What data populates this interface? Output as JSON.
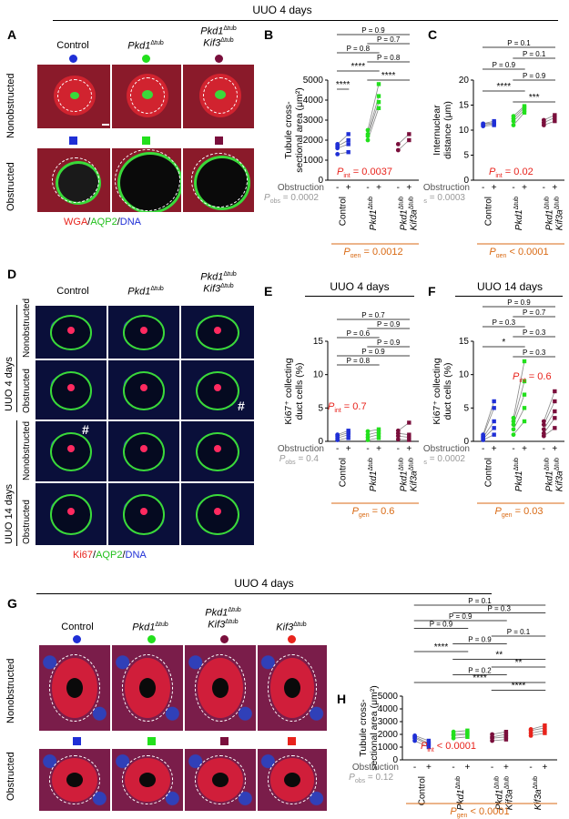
{
  "headers": {
    "top": "UUO 4 days",
    "middle_e": "UUO 4 days",
    "middle_f": "UUO 14 days",
    "bottom": "UUO 4 days"
  },
  "panel_letters": {
    "a": "A",
    "b": "B",
    "c": "C",
    "d": "D",
    "e": "E",
    "f": "F",
    "g": "G",
    "h": "H"
  },
  "groups": {
    "control": "Control",
    "pkd1": "Pkd1",
    "pkd1_sup": "Δtub",
    "kif3": "Kif3",
    "kif3_sup": "Δtub",
    "kif3a": "Kif3a"
  },
  "row_labels": {
    "nonobstructed": "Nonobstructed",
    "obstructed": "Obstructed",
    "uuo4": "UUO 4 days",
    "uuo14": "UUO 14 days"
  },
  "stain_a": {
    "wga": "WGA",
    "aqp2": "AQP2",
    "dna": "DNA",
    "sep": "/"
  },
  "stain_d": {
    "ki67": "Ki67",
    "aqp2": "AQP2",
    "dna": "DNA",
    "sep": "/"
  },
  "hash_mark": "#",
  "colors": {
    "control": "#1f2fd6",
    "pkd1": "#22e01c",
    "kif3": "#7a0f3c",
    "kif3a": "#e8231c",
    "pint": "#e8231c",
    "pgen": "#d96a14",
    "pobs": "#999999"
  },
  "obstruction_label": "Obstruction",
  "minus": "-",
  "plus": "+",
  "chart_data": [
    {
      "panel": "B",
      "type": "scatter",
      "ylabel": "Tubule cross-\nsectional area (μm²)",
      "ylim": [
        0,
        5000
      ],
      "yticks": [
        0,
        1000,
        2000,
        3000,
        4000,
        5000
      ],
      "groups": [
        "Control",
        "Pkd1Δtub",
        "Pkd1Δtub Kif3aΔtub"
      ],
      "series": [
        {
          "group": "Control",
          "nonobstructed": [
            1300,
            1600,
            1700,
            1800
          ],
          "obstructed": [
            1400,
            1800,
            2000,
            2300
          ]
        },
        {
          "group": "Pkd1Δtub",
          "nonobstructed": [
            2000,
            2200,
            2300,
            2500
          ],
          "obstructed": [
            3600,
            3900,
            4200,
            4800
          ]
        },
        {
          "group": "Pkd1Δtub Kif3aΔtub",
          "nonobstructed": [
            1500,
            1800
          ],
          "obstructed": [
            2000,
            2300
          ]
        }
      ],
      "comparisons": [
        "P = 0.9",
        "P = 0.7",
        "P = 0.8",
        "P = 0.8",
        "****",
        "****",
        "****"
      ],
      "p_int": "P",
      "p_int_sub": "int",
      "p_int_val": " = 0.0037",
      "p_obs": "P",
      "p_obs_sub": "obs",
      "p_obs_val": " = 0.0002",
      "p_gen": "P",
      "p_gen_sub": "gen",
      "p_gen_val": " = 0.0012"
    },
    {
      "panel": "C",
      "type": "scatter",
      "ylabel": "Internuclear\ndistance (μm)",
      "ylim": [
        0,
        20
      ],
      "yticks": [
        0,
        5,
        10,
        15,
        20
      ],
      "groups": [
        "Control",
        "Pkd1Δtub",
        "Pkd1Δtub Kif3aΔtub"
      ],
      "series": [
        {
          "group": "Control",
          "nonobstructed": [
            10.8,
            11.0,
            11.2,
            11.3
          ],
          "obstructed": [
            11.0,
            11.3,
            11.5,
            11.8
          ]
        },
        {
          "group": "Pkd1Δtub",
          "nonobstructed": [
            11.0,
            11.8,
            12.3,
            12.8
          ],
          "obstructed": [
            13.5,
            14.0,
            14.5,
            14.8
          ]
        },
        {
          "group": "Pkd1Δtub Kif3aΔtub",
          "nonobstructed": [
            11.0,
            11.5,
            12.0
          ],
          "obstructed": [
            11.8,
            12.5,
            13.0
          ]
        }
      ],
      "comparisons": [
        "P = 0.1",
        "P = 0.1",
        "P = 0.9",
        "P = 0.9",
        "****",
        "***"
      ],
      "p_int": "P",
      "p_int_sub": "int",
      "p_int_val": " = 0.02",
      "p_obs": "P",
      "p_obs_sub": "obs",
      "p_obs_val": " = 0.0003",
      "p_gen": "P",
      "p_gen_sub": "gen",
      "p_gen_val": " < 0.0001"
    },
    {
      "panel": "E",
      "type": "scatter",
      "ylabel": "Ki67⁺ collecting\nduct cells (%)",
      "ylim": [
        0,
        15
      ],
      "yticks": [
        0,
        5,
        10,
        15
      ],
      "groups": [
        "Control",
        "Pkd1Δtub",
        "Pkd1Δtub Kif3aΔtub"
      ],
      "series": [
        {
          "group": "Control",
          "nonobstructed": [
            0.2,
            0.5,
            0.8,
            1.0
          ],
          "obstructed": [
            0.5,
            1.0,
            1.3,
            1.6
          ]
        },
        {
          "group": "Pkd1Δtub",
          "nonobstructed": [
            0.2,
            0.6,
            1.0,
            1.5
          ],
          "obstructed": [
            0.5,
            1.0,
            1.4,
            1.8
          ]
        },
        {
          "group": "Pkd1Δtub Kif3aΔtub",
          "nonobstructed": [
            0.3,
            0.8,
            1.2,
            1.6
          ],
          "obstructed": [
            0.2,
            0.6,
            1.0,
            2.8
          ]
        }
      ],
      "comparisons": [
        "P = 0.7",
        "P = 0.9",
        "P = 0.6",
        "P = 0.9",
        "P = 0.9",
        "P = 0.8"
      ],
      "p_int": "P",
      "p_int_sub": "int",
      "p_int_val": " = 0.7",
      "p_obs": "P",
      "p_obs_sub": "obs",
      "p_obs_val": " = 0.4",
      "p_gen": "P",
      "p_gen_sub": "gen",
      "p_gen_val": " = 0.6"
    },
    {
      "panel": "F",
      "type": "scatter",
      "ylabel": "Ki67⁺ collecting\nduct cells (%)",
      "ylim": [
        0,
        15
      ],
      "yticks": [
        0,
        5,
        10,
        15
      ],
      "groups": [
        "Control",
        "Pkd1Δtub",
        "Pkd1Δtub Kif3aΔtub"
      ],
      "series": [
        {
          "group": "Control",
          "nonobstructed": [
            0.2,
            0.4,
            0.6,
            0.8,
            1.0
          ],
          "obstructed": [
            1.0,
            2.0,
            3.0,
            5.0,
            6.0
          ]
        },
        {
          "group": "Pkd1Δtub",
          "nonobstructed": [
            1.0,
            1.8,
            2.5,
            3.0,
            3.5
          ],
          "obstructed": [
            3.0,
            5.0,
            7.0,
            9.0,
            12.0
          ]
        },
        {
          "group": "Pkd1Δtub Kif3aΔtub",
          "nonobstructed": [
            0.8,
            1.2,
            1.8,
            2.5,
            3.0
          ],
          "obstructed": [
            2.0,
            3.5,
            4.5,
            6.0,
            7.5
          ]
        }
      ],
      "comparisons": [
        "P = 0.9",
        "P = 0.7",
        "P = 0.3",
        "P = 0.3",
        "*",
        "P = 0.3"
      ],
      "p_int": "P",
      "p_int_sub": "int",
      "p_int_val": " = 0.6",
      "p_obs": "P",
      "p_obs_sub": "obs",
      "p_obs_val": " = 0.0002",
      "p_gen": "P",
      "p_gen_sub": "gen",
      "p_gen_val": " = 0.03"
    },
    {
      "panel": "H",
      "type": "scatter",
      "ylabel": "Tubule cross-\nsectional area (μm²)",
      "ylim": [
        0,
        5000
      ],
      "yticks": [
        0,
        1000,
        2000,
        3000,
        4000,
        5000
      ],
      "groups": [
        "Control",
        "Pkd1Δtub",
        "Pkd1Δtub Kif3aΔtub",
        "Kif3aΔtub"
      ],
      "series": [
        {
          "group": "Control",
          "nonobstructed": [
            1500,
            1700,
            1800,
            1900
          ],
          "obstructed": [
            1000,
            1200,
            1300,
            1500
          ]
        },
        {
          "group": "Pkd1Δtub",
          "nonobstructed": [
            1700,
            1900,
            2000,
            2200
          ],
          "obstructed": [
            1800,
            2000,
            2100,
            2300
          ]
        },
        {
          "group": "Pkd1Δtub Kif3aΔtub",
          "nonobstructed": [
            1500,
            1700,
            1800,
            2000
          ],
          "obstructed": [
            1600,
            1800,
            2000,
            2200
          ]
        },
        {
          "group": "Kif3aΔtub",
          "nonobstructed": [
            1900,
            2100,
            2300,
            2400
          ],
          "obstructed": [
            2100,
            2300,
            2500,
            2700
          ]
        }
      ],
      "comparisons": [
        "P = 0.1",
        "P = 0.3",
        "P = 0.9",
        "P = 0.9",
        "P = 0.1",
        "P = 0.9",
        "****",
        "**",
        "**",
        "P = 0.2",
        "****",
        "****"
      ],
      "p_int": "P",
      "p_int_sub": "int",
      "p_int_val": " < 0.0001",
      "p_obs": "P",
      "p_obs_sub": "obs",
      "p_obs_val": " = 0.12",
      "p_gen": "P",
      "p_gen_sub": "gen",
      "p_gen_val": " < 0.0001"
    }
  ]
}
